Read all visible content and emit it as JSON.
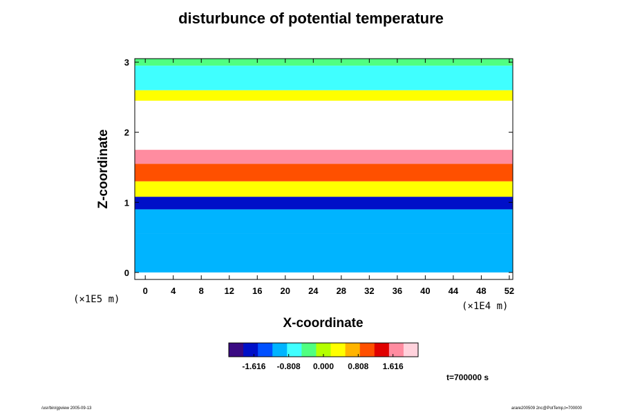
{
  "chart_data": {
    "type": "heatmap",
    "title": "disturbunce of potential temperature",
    "xlabel": "X-coordinate",
    "ylabel": "Z-coordinate",
    "x_unit": "(×1E4 m)",
    "y_unit": "(×1E5 m)",
    "xlim": [
      -1.5,
      52.5
    ],
    "ylim": [
      -0.1,
      3.05
    ],
    "x_ticks": [
      0,
      4,
      8,
      12,
      16,
      20,
      24,
      28,
      32,
      36,
      40,
      44,
      48,
      52
    ],
    "y_ticks": [
      0,
      1,
      2,
      3
    ],
    "colorbar": {
      "ticks": [
        "-1.616",
        "-0.808",
        "0.000",
        "0.808",
        "1.616"
      ],
      "tick_values": [
        -1.616,
        -0.808,
        0.0,
        0.808,
        1.616
      ],
      "range": [
        -2.2,
        2.2
      ],
      "colors": [
        "#3a0a82",
        "#0010c8",
        "#0050ff",
        "#00b4ff",
        "#40ffff",
        "#50ff80",
        "#b4ff00",
        "#ffff00",
        "#ffb400",
        "#ff5000",
        "#e00000",
        "#ff8ca0",
        "#ffd2dc"
      ]
    },
    "field_bands": [
      {
        "z": [
          0.0,
          0.55
        ],
        "value": -0.85
      },
      {
        "z": [
          0.55,
          0.9
        ],
        "value": -1.0
      },
      {
        "z": [
          0.9,
          1.08
        ],
        "value": -1.65
      },
      {
        "z": [
          1.08,
          1.3
        ],
        "value": 0.5
      },
      {
        "z": [
          1.3,
          1.55
        ],
        "value": 0.9
      },
      {
        "z": [
          1.55,
          1.75
        ],
        "value": 1.6
      },
      {
        "z": [
          1.75,
          2.45
        ],
        "value": null
      },
      {
        "z": [
          2.45,
          2.6
        ],
        "value": 0.35
      },
      {
        "z": [
          2.6,
          2.95
        ],
        "value": -0.8
      },
      {
        "z": [
          2.95,
          3.05
        ],
        "value": -0.4
      }
    ],
    "undefined_color": "#ffffff",
    "annotation": "t=700000 s"
  },
  "footer": {
    "left": "/usr/bin/gpview 2005-09-13",
    "right": "arare200509 2nc@PotTemp,t=700000"
  }
}
